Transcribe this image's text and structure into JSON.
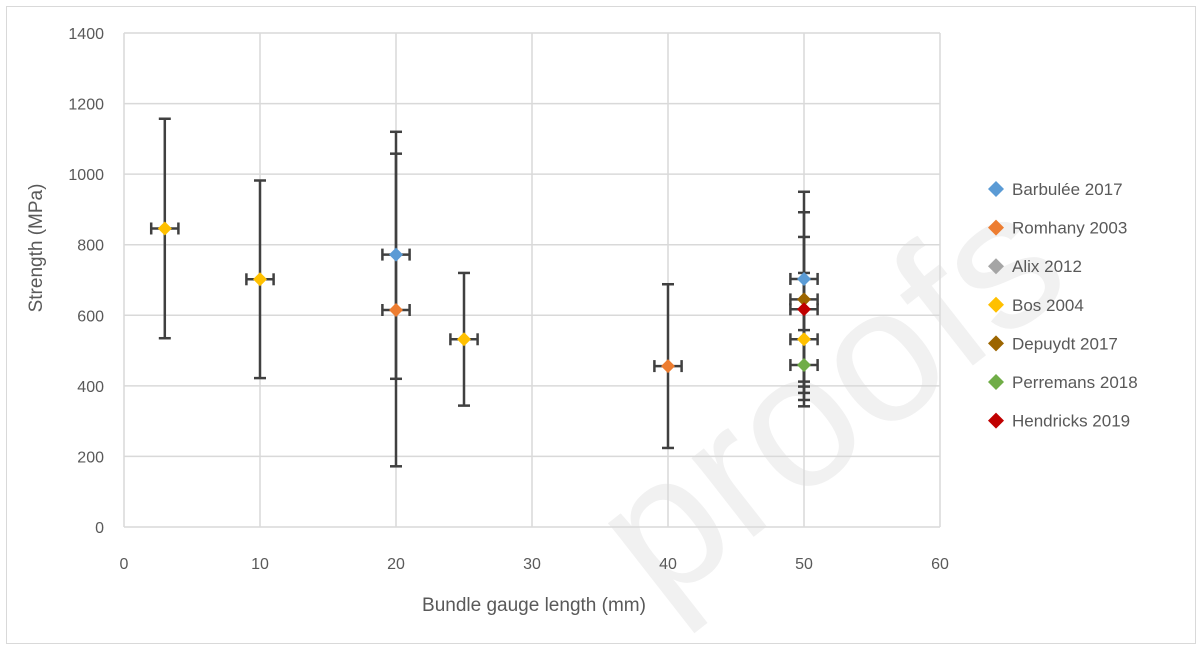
{
  "watermark": "proofs",
  "chart_data": {
    "type": "scatter",
    "xlabel": "Bundle gauge length (mm)",
    "ylabel": "Strength (MPa)",
    "xlim": [
      0,
      60
    ],
    "ylim": [
      0,
      1400
    ],
    "x_ticks": [
      0,
      10,
      20,
      30,
      40,
      50,
      60
    ],
    "y_ticks": [
      0,
      200,
      400,
      600,
      800,
      1000,
      1200,
      1400
    ],
    "grid": true,
    "legend_position": "right",
    "error_bars": {
      "x_error": 1
    },
    "series": [
      {
        "name": "Barbulée 2017",
        "color": "#5b9bd5",
        "marker": "diamond",
        "points": [
          {
            "x": 20,
            "y": 772,
            "ylo": 420,
            "yhi": 1120
          },
          {
            "x": 50,
            "y": 703,
            "ylo": 380,
            "yhi": 950
          }
        ]
      },
      {
        "name": "Romhany 2003",
        "color": "#ed7d31",
        "marker": "diamond",
        "points": [
          {
            "x": 20,
            "y": 615,
            "ylo": 172,
            "yhi": 1058
          },
          {
            "x": 40,
            "y": 456,
            "ylo": 224,
            "yhi": 688
          }
        ]
      },
      {
        "name": "Alix 2012",
        "color": "#a5a5a5",
        "marker": "diamond",
        "points": []
      },
      {
        "name": "Bos 2004",
        "color": "#ffc000",
        "marker": "diamond",
        "points": [
          {
            "x": 3,
            "y": 846,
            "ylo": 535,
            "yhi": 1157
          },
          {
            "x": 10,
            "y": 702,
            "ylo": 422,
            "yhi": 982
          },
          {
            "x": 25,
            "y": 532,
            "ylo": 344,
            "yhi": 720
          },
          {
            "x": 50,
            "y": 532,
            "ylo": 342,
            "yhi": 720
          }
        ]
      },
      {
        "name": "Depuydt 2017",
        "color": "#9c6500",
        "marker": "diamond",
        "points": [
          {
            "x": 50,
            "y": 645,
            "ylo": 398,
            "yhi": 892
          }
        ]
      },
      {
        "name": "Perremans 2018",
        "color": "#70ad47",
        "marker": "diamond",
        "points": [
          {
            "x": 50,
            "y": 459,
            "ylo": 360,
            "yhi": 558
          }
        ]
      },
      {
        "name": "Hendricks 2019",
        "color": "#c00000",
        "marker": "diamond",
        "points": [
          {
            "x": 50,
            "y": 617,
            "ylo": 412,
            "yhi": 822
          }
        ]
      }
    ]
  }
}
